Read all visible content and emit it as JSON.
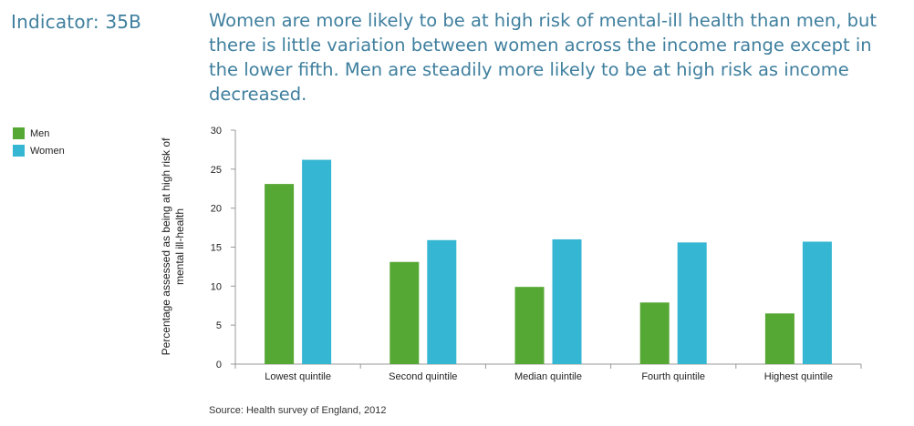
{
  "indicator": "Indicator: 35B",
  "headline": "Women are more likely to be at high risk of mental-ill health than men, but there is little variation between women across the income range except in the lower fifth. Men are steadily more likely to be at high risk as income decreased.",
  "source": "Source: Health survey of England, 2012",
  "colors": {
    "men": "#56a834",
    "women": "#35b6d2",
    "text": "#3f7f9e"
  },
  "chart_data": {
    "type": "bar",
    "title": "",
    "xlabel": "",
    "ylabel": "Percentage assessed as being at high risk of mental ill-health",
    "ylim": [
      0,
      30
    ],
    "yticks": [
      0,
      5,
      10,
      15,
      20,
      25,
      30
    ],
    "grid": false,
    "legend_position": "left",
    "categories": [
      "Lowest quintile",
      "Second quintile",
      "Median quintile",
      "Fourth quintile",
      "Highest quintile"
    ],
    "series": [
      {
        "name": "Men",
        "values": [
          23.1,
          13.1,
          9.9,
          7.9,
          6.5
        ]
      },
      {
        "name": "Women",
        "values": [
          26.2,
          15.9,
          16.0,
          15.6,
          15.7
        ]
      }
    ]
  }
}
